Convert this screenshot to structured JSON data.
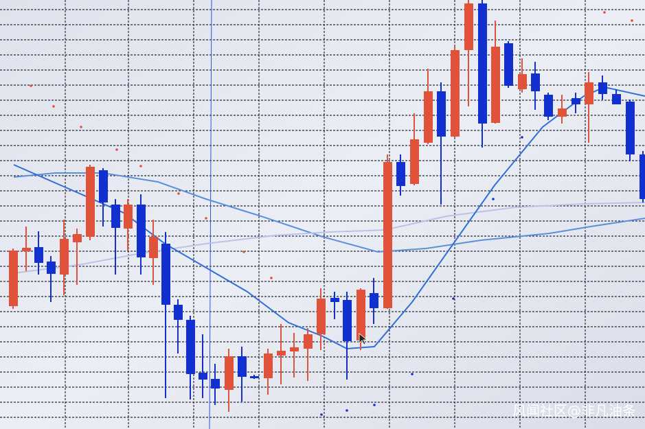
{
  "watermark": "风闻社区@非凡油条"
}
